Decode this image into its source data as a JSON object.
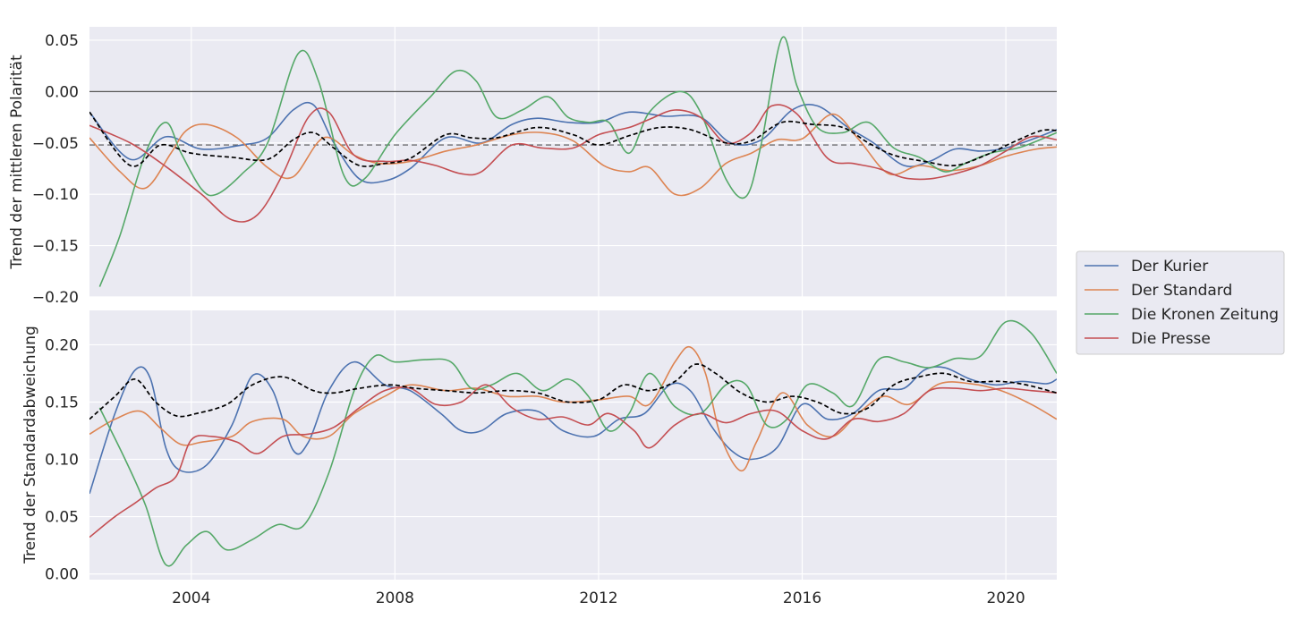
{
  "colors": {
    "background": "#eaeaf2",
    "grid": "#ffffff",
    "Der Kurier": "#4c72b0",
    "Der Standard": "#dd8452",
    "Die Kronen Zeitung": "#55a868",
    "Die Presse": "#c44e52",
    "mean": "#000000",
    "refline": "#555555"
  },
  "legend": [
    "Der Kurier",
    "Der Standard",
    "Die Kronen Zeitung",
    "Die Presse"
  ],
  "chart_data": [
    {
      "type": "line",
      "title": "",
      "xlabel": "",
      "ylabel": "Trend der mittleren Polarität",
      "xlim": [
        2002.0,
        2021.0
      ],
      "ylim": [
        -0.2,
        0.063
      ],
      "xticks": [
        2004,
        2008,
        2012,
        2016,
        2020
      ],
      "yticks": [
        0.05,
        0.0,
        -0.05,
        -0.1,
        -0.15,
        -0.2
      ],
      "ytick_labels": [
        "0.05",
        "0.00",
        "−0.05",
        "−0.10",
        "−0.15",
        "−0.20"
      ],
      "hlines": [
        {
          "y": 0.0,
          "style": "solid",
          "color": "#555555"
        },
        {
          "y": -0.052,
          "style": "dashed",
          "color": "#555555"
        }
      ],
      "series": [
        {
          "name": "Der Kurier",
          "style": "solid",
          "x": [
            2002.0,
            2002.8,
            2003.5,
            2004.2,
            2005.0,
            2005.5,
            2006.0,
            2006.4,
            2006.8,
            2007.3,
            2007.8,
            2008.3,
            2009.0,
            2009.7,
            2010.3,
            2010.8,
            2011.4,
            2012.0,
            2012.6,
            2013.3,
            2014.0,
            2014.6,
            2015.2,
            2015.8,
            2016.3,
            2016.9,
            2017.4,
            2018.0,
            2018.5,
            2019.0,
            2019.5,
            2020.0,
            2020.6,
            2021.0
          ],
          "y": [
            -0.02,
            -0.066,
            -0.044,
            -0.056,
            -0.052,
            -0.045,
            -0.018,
            -0.013,
            -0.05,
            -0.085,
            -0.087,
            -0.075,
            -0.045,
            -0.05,
            -0.032,
            -0.026,
            -0.03,
            -0.03,
            -0.02,
            -0.024,
            -0.025,
            -0.05,
            -0.047,
            -0.018,
            -0.014,
            -0.035,
            -0.05,
            -0.072,
            -0.068,
            -0.056,
            -0.058,
            -0.055,
            -0.045,
            -0.037
          ]
        },
        {
          "name": "Der Standard",
          "style": "solid",
          "x": [
            2002.0,
            2002.6,
            2003.1,
            2003.6,
            2003.9,
            2004.3,
            2004.9,
            2005.5,
            2006.0,
            2006.6,
            2007.2,
            2007.7,
            2008.3,
            2009.0,
            2009.6,
            2010.3,
            2010.9,
            2011.5,
            2012.1,
            2012.6,
            2013.0,
            2013.5,
            2014.0,
            2014.5,
            2015.0,
            2015.5,
            2016.0,
            2016.6,
            2017.1,
            2017.7,
            2018.3,
            2018.9,
            2019.5,
            2020.0,
            2020.6,
            2021.0
          ],
          "y": [
            -0.045,
            -0.078,
            -0.094,
            -0.06,
            -0.038,
            -0.032,
            -0.045,
            -0.074,
            -0.083,
            -0.045,
            -0.062,
            -0.07,
            -0.068,
            -0.058,
            -0.052,
            -0.042,
            -0.04,
            -0.048,
            -0.072,
            -0.078,
            -0.074,
            -0.1,
            -0.094,
            -0.07,
            -0.06,
            -0.047,
            -0.046,
            -0.022,
            -0.046,
            -0.08,
            -0.072,
            -0.077,
            -0.072,
            -0.063,
            -0.056,
            -0.054
          ]
        },
        {
          "name": "Die Kronen Zeitung",
          "style": "solid",
          "x": [
            2002.2,
            2002.6,
            2003.1,
            2003.5,
            2003.8,
            2004.2,
            2004.5,
            2005.0,
            2005.5,
            2006.1,
            2006.5,
            2007.0,
            2007.4,
            2008.0,
            2008.7,
            2009.2,
            2009.6,
            2010.0,
            2010.5,
            2011.0,
            2011.4,
            2011.8,
            2012.2,
            2012.6,
            2013.0,
            2013.6,
            2014.0,
            2014.5,
            2014.9,
            2015.2,
            2015.6,
            2015.9,
            2016.3,
            2016.8,
            2017.3,
            2017.8,
            2018.3,
            2018.8,
            2019.2,
            2019.7,
            2020.3,
            2021.0
          ],
          "y": [
            -0.19,
            -0.14,
            -0.06,
            -0.03,
            -0.06,
            -0.095,
            -0.1,
            -0.08,
            -0.05,
            0.037,
            0.01,
            -0.082,
            -0.085,
            -0.042,
            -0.005,
            0.02,
            0.01,
            -0.025,
            -0.018,
            -0.005,
            -0.025,
            -0.03,
            -0.03,
            -0.06,
            -0.02,
            0.0,
            -0.02,
            -0.085,
            -0.102,
            -0.05,
            0.052,
            0.005,
            -0.035,
            -0.04,
            -0.03,
            -0.055,
            -0.064,
            -0.078,
            -0.07,
            -0.06,
            -0.054,
            -0.04
          ]
        },
        {
          "name": "Die Presse",
          "style": "solid",
          "x": [
            2002.0,
            2002.8,
            2003.5,
            2004.2,
            2004.8,
            2005.3,
            2005.8,
            2006.3,
            2006.7,
            2007.2,
            2007.8,
            2008.3,
            2008.8,
            2009.3,
            2009.7,
            2010.3,
            2010.9,
            2011.5,
            2012.0,
            2012.6,
            2013.0,
            2013.5,
            2014.0,
            2014.5,
            2015.0,
            2015.4,
            2015.9,
            2016.5,
            2017.0,
            2017.5,
            2018.0,
            2018.5,
            2019.0,
            2019.5,
            2020.0,
            2020.5,
            2021.0
          ],
          "y": [
            -0.033,
            -0.05,
            -0.073,
            -0.1,
            -0.125,
            -0.12,
            -0.08,
            -0.025,
            -0.02,
            -0.062,
            -0.068,
            -0.067,
            -0.072,
            -0.08,
            -0.078,
            -0.052,
            -0.055,
            -0.055,
            -0.042,
            -0.035,
            -0.027,
            -0.018,
            -0.025,
            -0.05,
            -0.04,
            -0.014,
            -0.022,
            -0.065,
            -0.07,
            -0.075,
            -0.084,
            -0.085,
            -0.08,
            -0.072,
            -0.058,
            -0.044,
            -0.047
          ]
        },
        {
          "name": "mean",
          "style": "dashed",
          "x": [
            2002.0,
            2002.8,
            2003.4,
            2004.0,
            2004.8,
            2005.5,
            2006.0,
            2006.4,
            2006.8,
            2007.3,
            2007.8,
            2008.3,
            2009.0,
            2009.5,
            2010.0,
            2010.8,
            2011.5,
            2012.0,
            2012.6,
            2013.2,
            2013.8,
            2014.5,
            2015.0,
            2015.6,
            2016.2,
            2016.8,
            2017.3,
            2017.8,
            2018.4,
            2019.0,
            2019.6,
            2020.2,
            2020.7,
            2021.0
          ],
          "y": [
            -0.02,
            -0.072,
            -0.052,
            -0.06,
            -0.064,
            -0.066,
            -0.047,
            -0.04,
            -0.055,
            -0.072,
            -0.07,
            -0.065,
            -0.042,
            -0.045,
            -0.045,
            -0.035,
            -0.042,
            -0.052,
            -0.043,
            -0.035,
            -0.037,
            -0.05,
            -0.048,
            -0.03,
            -0.032,
            -0.035,
            -0.05,
            -0.062,
            -0.068,
            -0.072,
            -0.062,
            -0.048,
            -0.038,
            -0.038
          ]
        }
      ]
    },
    {
      "type": "line",
      "title": "",
      "xlabel": "",
      "ylabel": "Trend der Standardabweichung",
      "xlim": [
        2002.0,
        2021.0
      ],
      "ylim": [
        -0.005,
        0.23
      ],
      "xticks": [
        2004,
        2008,
        2012,
        2016,
        2020
      ],
      "xtick_labels": [
        "2004",
        "2008",
        "2012",
        "2016",
        "2020"
      ],
      "yticks": [
        0.2,
        0.15,
        0.1,
        0.05,
        0.0
      ],
      "ytick_labels": [
        "0.20",
        "0.15",
        "0.10",
        "0.05",
        "0.00"
      ],
      "series": [
        {
          "name": "Der Kurier",
          "style": "solid",
          "x": [
            2002.0,
            2002.5,
            2002.9,
            2003.2,
            2003.5,
            2003.8,
            2004.3,
            2004.8,
            2005.2,
            2005.6,
            2006.0,
            2006.3,
            2006.7,
            2007.2,
            2007.8,
            2008.3,
            2008.9,
            2009.3,
            2009.7,
            2010.2,
            2010.8,
            2011.3,
            2011.9,
            2012.4,
            2012.9,
            2013.4,
            2013.8,
            2014.2,
            2014.6,
            2015.0,
            2015.5,
            2016.0,
            2016.5,
            2017.0,
            2017.5,
            2018.0,
            2018.4,
            2018.8,
            2019.3,
            2019.8,
            2020.3,
            2020.8,
            2021.0
          ],
          "y": [
            0.07,
            0.14,
            0.178,
            0.17,
            0.11,
            0.09,
            0.095,
            0.13,
            0.173,
            0.16,
            0.108,
            0.115,
            0.16,
            0.185,
            0.165,
            0.16,
            0.14,
            0.125,
            0.125,
            0.14,
            0.142,
            0.125,
            0.12,
            0.135,
            0.14,
            0.165,
            0.16,
            0.13,
            0.108,
            0.1,
            0.11,
            0.148,
            0.135,
            0.14,
            0.16,
            0.162,
            0.178,
            0.18,
            0.17,
            0.165,
            0.168,
            0.166,
            0.17
          ]
        },
        {
          "name": "Der Standard",
          "style": "solid",
          "x": [
            2002.0,
            2002.5,
            2003.0,
            2003.4,
            2003.8,
            2004.2,
            2004.8,
            2005.2,
            2005.8,
            2006.2,
            2006.7,
            2007.2,
            2007.8,
            2008.3,
            2009.0,
            2009.6,
            2010.2,
            2010.8,
            2011.3,
            2012.0,
            2012.6,
            2013.0,
            2013.5,
            2013.8,
            2014.1,
            2014.4,
            2014.8,
            2015.1,
            2015.6,
            2016.1,
            2016.6,
            2017.1,
            2017.6,
            2018.1,
            2018.7,
            2019.3,
            2019.9,
            2020.5,
            2021.0
          ],
          "y": [
            0.122,
            0.135,
            0.142,
            0.127,
            0.113,
            0.115,
            0.12,
            0.133,
            0.135,
            0.12,
            0.12,
            0.14,
            0.155,
            0.165,
            0.16,
            0.162,
            0.155,
            0.155,
            0.15,
            0.152,
            0.155,
            0.148,
            0.185,
            0.198,
            0.175,
            0.12,
            0.09,
            0.115,
            0.158,
            0.13,
            0.12,
            0.14,
            0.155,
            0.148,
            0.166,
            0.166,
            0.16,
            0.148,
            0.135
          ]
        },
        {
          "name": "Die Kronen Zeitung",
          "style": "solid",
          "x": [
            2002.2,
            2002.7,
            2003.1,
            2003.5,
            2003.9,
            2004.3,
            2004.7,
            2005.2,
            2005.7,
            2006.2,
            2006.7,
            2007.2,
            2007.6,
            2008.0,
            2008.6,
            2009.1,
            2009.5,
            2009.9,
            2010.4,
            2010.9,
            2011.4,
            2011.8,
            2012.2,
            2012.6,
            2013.0,
            2013.5,
            2014.0,
            2014.5,
            2014.9,
            2015.3,
            2015.7,
            2016.1,
            2016.6,
            2017.0,
            2017.5,
            2018.0,
            2018.5,
            2019.0,
            2019.5,
            2020.0,
            2020.5,
            2021.0
          ],
          "y": [
            0.145,
            0.1,
            0.06,
            0.008,
            0.025,
            0.037,
            0.021,
            0.03,
            0.043,
            0.042,
            0.088,
            0.16,
            0.19,
            0.185,
            0.187,
            0.185,
            0.162,
            0.165,
            0.175,
            0.16,
            0.17,
            0.155,
            0.125,
            0.14,
            0.175,
            0.146,
            0.14,
            0.165,
            0.165,
            0.13,
            0.135,
            0.165,
            0.158,
            0.147,
            0.187,
            0.185,
            0.18,
            0.188,
            0.19,
            0.22,
            0.21,
            0.175
          ]
        },
        {
          "name": "Die Presse",
          "style": "solid",
          "x": [
            2002.0,
            2002.5,
            2002.9,
            2003.3,
            2003.7,
            2004.0,
            2004.4,
            2004.9,
            2005.3,
            2005.8,
            2006.3,
            2006.8,
            2007.3,
            2007.8,
            2008.3,
            2008.8,
            2009.3,
            2009.8,
            2010.3,
            2010.8,
            2011.3,
            2011.8,
            2012.2,
            2012.7,
            2013.0,
            2013.5,
            2014.0,
            2014.5,
            2015.0,
            2015.5,
            2016.0,
            2016.5,
            2017.0,
            2017.5,
            2018.0,
            2018.5,
            2019.0,
            2019.5,
            2020.0,
            2020.5,
            2021.0
          ],
          "y": [
            0.032,
            0.05,
            0.062,
            0.075,
            0.085,
            0.117,
            0.12,
            0.115,
            0.105,
            0.12,
            0.122,
            0.128,
            0.145,
            0.16,
            0.162,
            0.148,
            0.15,
            0.165,
            0.145,
            0.135,
            0.137,
            0.13,
            0.14,
            0.125,
            0.11,
            0.13,
            0.14,
            0.132,
            0.14,
            0.142,
            0.125,
            0.118,
            0.135,
            0.133,
            0.14,
            0.16,
            0.162,
            0.16,
            0.162,
            0.16,
            0.158
          ]
        },
        {
          "name": "mean",
          "style": "dashed",
          "x": [
            2002.0,
            2002.5,
            2002.9,
            2003.3,
            2003.7,
            2004.1,
            2004.7,
            2005.2,
            2005.8,
            2006.4,
            2006.8,
            2007.3,
            2007.9,
            2008.4,
            2009.0,
            2009.6,
            2010.2,
            2010.8,
            2011.4,
            2012.0,
            2012.5,
            2013.0,
            2013.5,
            2013.9,
            2014.3,
            2014.8,
            2015.3,
            2015.8,
            2016.3,
            2016.8,
            2017.3,
            2017.8,
            2018.3,
            2018.8,
            2019.3,
            2019.9,
            2020.4,
            2021.0
          ],
          "y": [
            0.135,
            0.155,
            0.17,
            0.15,
            0.138,
            0.14,
            0.148,
            0.165,
            0.172,
            0.16,
            0.158,
            0.162,
            0.165,
            0.162,
            0.16,
            0.158,
            0.16,
            0.158,
            0.15,
            0.152,
            0.165,
            0.16,
            0.168,
            0.183,
            0.175,
            0.158,
            0.15,
            0.155,
            0.15,
            0.14,
            0.145,
            0.165,
            0.172,
            0.175,
            0.168,
            0.168,
            0.165,
            0.158
          ]
        }
      ]
    }
  ]
}
